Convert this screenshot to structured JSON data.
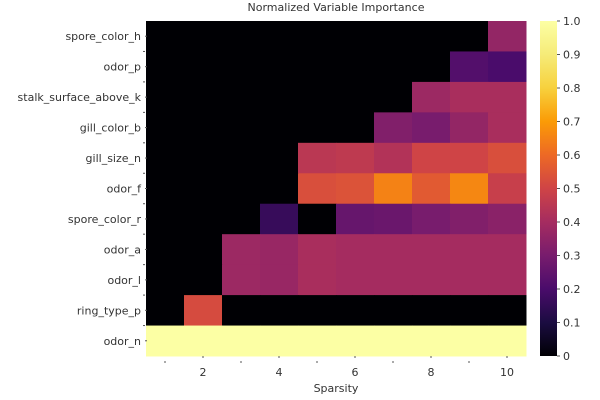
{
  "chart_data": {
    "type": "heatmap",
    "title": "Normalized Variable Importance",
    "xlabel": "Sparsity",
    "ylabel": "",
    "x": [
      1,
      2,
      3,
      4,
      5,
      6,
      7,
      8,
      9,
      10
    ],
    "xlim": [
      0.5,
      10.5
    ],
    "xticks": [
      2,
      4,
      6,
      8,
      10
    ],
    "xtick_labels": [
      "2",
      "4",
      "6",
      "8",
      "10"
    ],
    "grid": true,
    "colormap": "inferno",
    "zlim": [
      0,
      1
    ],
    "colorbar_ticks": [
      0,
      0.1,
      0.2,
      0.3,
      0.4,
      0.5,
      0.6,
      0.7,
      0.8,
      0.9,
      1.0
    ],
    "colorbar_tick_labels": [
      "0",
      "0.1",
      "0.2",
      "0.3",
      "0.4",
      "0.5",
      "0.6",
      "0.7",
      "0.8",
      "0.9",
      "1.0"
    ],
    "rows": [
      {
        "name": "spore_color_h",
        "values": [
          0,
          0,
          0,
          0,
          0,
          0,
          0,
          0,
          0,
          0.36
        ]
      },
      {
        "name": "odor_p",
        "values": [
          0,
          0,
          0,
          0,
          0,
          0,
          0,
          0,
          0.22,
          0.2
        ]
      },
      {
        "name": "stalk_surface_above_k",
        "values": [
          0,
          0,
          0,
          0,
          0,
          0,
          0,
          0.38,
          0.41,
          0.41
        ]
      },
      {
        "name": "gill_color_b",
        "values": [
          0,
          0,
          0,
          0,
          0,
          0,
          0.32,
          0.3,
          0.36,
          0.41
        ]
      },
      {
        "name": "gill_size_n",
        "values": [
          0,
          0,
          0,
          0,
          0.45,
          0.46,
          0.43,
          0.5,
          0.5,
          0.53
        ]
      },
      {
        "name": "odor_f",
        "values": [
          0,
          0,
          0,
          0,
          0.53,
          0.54,
          0.65,
          0.56,
          0.66,
          0.48
        ]
      },
      {
        "name": "spore_color_r",
        "values": [
          0,
          0,
          0,
          0.16,
          0,
          0.26,
          0.27,
          0.3,
          0.32,
          0.34
        ]
      },
      {
        "name": "odor_a",
        "values": [
          0,
          0,
          0.38,
          0.37,
          0.41,
          0.4,
          0.4,
          0.4,
          0.4,
          0.4
        ]
      },
      {
        "name": "odor_l",
        "values": [
          0,
          0,
          0.38,
          0.37,
          0.41,
          0.4,
          0.4,
          0.4,
          0.4,
          0.4
        ]
      },
      {
        "name": "ring_type_p",
        "values": [
          0,
          0.52,
          0,
          0,
          0,
          0,
          0,
          0,
          0,
          0
        ]
      },
      {
        "name": "odor_n",
        "values": [
          1.0,
          1.0,
          1.0,
          1.0,
          1.0,
          1.0,
          1.0,
          1.0,
          1.0,
          1.0
        ]
      }
    ]
  }
}
